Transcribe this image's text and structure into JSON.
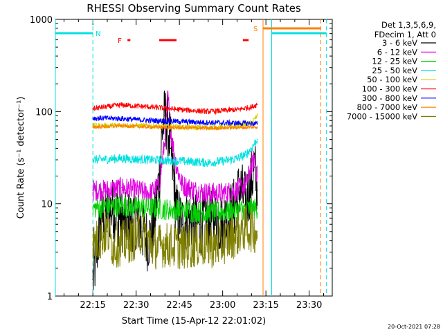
{
  "chart_data": {
    "type": "line",
    "title": "RHESSI Observing Summary Count Rates",
    "xlabel": "Start Time (15-Apr-12 22:01:02)",
    "ylabel": "Count Rate (s⁻¹ detector⁻¹)",
    "ylim": [
      1,
      1000
    ],
    "yscale": "log",
    "xlim_minutes": [
      1,
      97
    ],
    "xlim_time": [
      "22:02:00",
      "23:38:00"
    ],
    "x_ticks": [
      "22:15",
      "22:30",
      "22:45",
      "23:00",
      "23:15",
      "23:30"
    ],
    "y_ticks": [
      "1",
      "10",
      "100",
      "1000"
    ],
    "legend_header": [
      "Det 1,3,5,6,9,",
      "FDecim 1, Att 0"
    ],
    "legend_position": "right",
    "grid": false,
    "series": [
      {
        "name": "3 - 6 keV",
        "color": "#000000",
        "x": [
          "22:15",
          "22:18",
          "22:22",
          "22:26",
          "22:30",
          "22:34",
          "22:36",
          "22:38",
          "22:39",
          "22:40",
          "22:41",
          "22:42",
          "22:43",
          "22:44",
          "22:46",
          "22:48",
          "22:52",
          "22:56",
          "23:00",
          "23:04",
          "23:06",
          "23:08",
          "23:10",
          "23:11",
          "23:12"
        ],
        "values": [
          1.5,
          7,
          9,
          6,
          7,
          4,
          5,
          20,
          60,
          90,
          70,
          40,
          18,
          8,
          6,
          7,
          6,
          7,
          6,
          9,
          15,
          10,
          18,
          25,
          14
        ]
      },
      {
        "name": "6 - 12 keV",
        "color": "#e000e0",
        "x": [
          "22:15",
          "22:20",
          "22:25",
          "22:30",
          "22:35",
          "22:38",
          "22:40",
          "22:41",
          "22:42",
          "22:44",
          "22:46",
          "22:50",
          "22:55",
          "23:00",
          "23:05",
          "23:08",
          "23:10",
          "23:11",
          "23:12"
        ],
        "values": [
          14,
          14,
          15,
          14,
          13,
          16,
          50,
          150,
          60,
          25,
          16,
          14,
          13,
          13,
          14,
          16,
          25,
          32,
          20
        ]
      },
      {
        "name": "12 - 25 keV",
        "color": "#00d000",
        "x": [
          "22:15",
          "22:25",
          "22:35",
          "22:45",
          "22:55",
          "23:05",
          "23:12"
        ],
        "values": [
          9,
          9.5,
          9,
          8.5,
          8,
          8.5,
          9
        ]
      },
      {
        "name": "25 - 50 keV",
        "color": "#00e0e0",
        "x": [
          "22:15",
          "22:25",
          "22:35",
          "22:45",
          "22:55",
          "23:00",
          "23:05",
          "23:08",
          "23:10",
          "23:12"
        ],
        "values": [
          30,
          31,
          30,
          29,
          28,
          29,
          31,
          34,
          40,
          50
        ]
      },
      {
        "name": "50 - 100 keV",
        "color": "#d0d000",
        "x": [
          "22:15",
          "22:25",
          "22:35",
          "22:45",
          "22:55",
          "23:05",
          "23:10",
          "23:12"
        ],
        "values": [
          70,
          71,
          70,
          68,
          67,
          69,
          75,
          90
        ]
      },
      {
        "name": "100 - 300 keV",
        "color": "#ff0000",
        "x": [
          "22:15",
          "22:25",
          "22:35",
          "22:45",
          "22:55",
          "23:05",
          "23:10",
          "23:12"
        ],
        "values": [
          108,
          118,
          112,
          105,
          100,
          105,
          112,
          120
        ]
      },
      {
        "name": "300 - 800 keV",
        "color": "#0000ff",
        "x": [
          "22:15",
          "22:25",
          "22:35",
          "22:45",
          "22:55",
          "23:05",
          "23:12"
        ],
        "values": [
          85,
          84,
          80,
          78,
          76,
          75,
          74
        ]
      },
      {
        "name": "800 - 7000 keV",
        "color": "#ff8000",
        "x": [
          "22:15",
          "22:25",
          "22:35",
          "22:45",
          "22:55",
          "23:05",
          "23:12"
        ],
        "values": [
          68,
          70,
          68,
          67,
          66,
          67,
          68
        ]
      },
      {
        "name": "7000 - 15000 keV",
        "color": "#808000",
        "x": [
          "22:15",
          "22:20",
          "22:22",
          "22:28",
          "22:32",
          "22:36",
          "22:40",
          "22:46",
          "22:52",
          "22:58",
          "23:04",
          "23:08",
          "23:12"
        ],
        "values": [
          3.6,
          5,
          3.5,
          4,
          5,
          3.4,
          3.6,
          3.4,
          3.6,
          3.5,
          4.5,
          5.5,
          5
        ]
      }
    ],
    "flags": [
      {
        "label": "N",
        "color": "#00e0e0",
        "segments": [
          [
            "22:02",
            "22:15"
          ],
          [
            "23:17",
            "23:36"
          ]
        ],
        "lines": [
          [
            "22:02",
            "solid"
          ],
          [
            "22:15",
            "dashed"
          ],
          [
            "23:17",
            "solid"
          ],
          [
            "23:36",
            "dashed"
          ]
        ]
      },
      {
        "label": "S",
        "color": "#ff8000",
        "segments": [
          [
            "23:14",
            "23:34"
          ]
        ],
        "lines": [
          [
            "23:14",
            "solid"
          ],
          [
            "23:34",
            "dashed"
          ]
        ]
      },
      {
        "label": "F",
        "color": "#ff0000",
        "segments": [
          [
            "22:27",
            "22:28"
          ],
          [
            "22:38",
            "22:44"
          ],
          [
            "23:07",
            "23:09"
          ]
        ]
      }
    ]
  },
  "timestamp": "20-Oct-2021 07:28"
}
